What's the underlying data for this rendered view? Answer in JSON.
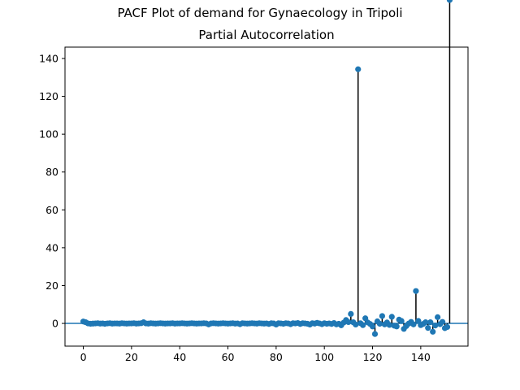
{
  "figure_title": "PACF Plot of demand for Gynaecology in Tripoli",
  "chart_data": {
    "type": "scatter",
    "style": "stem",
    "title": "Partial Autocorrelation",
    "xlabel": "",
    "ylabel": "",
    "xlim": [
      -7.6,
      159.6
    ],
    "ylim": [
      -12,
      146
    ],
    "xticks": [
      0,
      20,
      40,
      60,
      80,
      100,
      120,
      140
    ],
    "yticks": [
      0,
      20,
      40,
      60,
      80,
      100,
      120,
      140
    ],
    "grid": false,
    "legend": "none",
    "marker_color": "#1f77b4",
    "stem_color": "#000000",
    "baseline_color": "#1f77b4",
    "lags": [
      0,
      1,
      2,
      3,
      4,
      5,
      6,
      7,
      8,
      9,
      10,
      11,
      12,
      13,
      14,
      15,
      16,
      17,
      18,
      19,
      20,
      21,
      22,
      23,
      24,
      25,
      26,
      27,
      28,
      29,
      30,
      31,
      32,
      33,
      34,
      35,
      36,
      37,
      38,
      39,
      40,
      41,
      42,
      43,
      44,
      45,
      46,
      47,
      48,
      49,
      50,
      51,
      52,
      53,
      54,
      55,
      56,
      57,
      58,
      59,
      60,
      61,
      62,
      63,
      64,
      65,
      66,
      67,
      68,
      69,
      70,
      71,
      72,
      73,
      74,
      75,
      76,
      77,
      78,
      79,
      80,
      81,
      82,
      83,
      84,
      85,
      86,
      87,
      88,
      89,
      90,
      91,
      92,
      93,
      94,
      95,
      96,
      97,
      98,
      99,
      100,
      101,
      102,
      103,
      104,
      105,
      106,
      107,
      108,
      109,
      110,
      111,
      112,
      113,
      114,
      115,
      116,
      117,
      118,
      119,
      120,
      121,
      122,
      123,
      124,
      125,
      126,
      127,
      128,
      129,
      130,
      131,
      132,
      133,
      134,
      135,
      136,
      137,
      138,
      139,
      140,
      141,
      142,
      143,
      144,
      145,
      146,
      147,
      148,
      149,
      150,
      151,
      152
    ],
    "values": [
      1.0,
      0.6,
      0.0,
      -0.2,
      -0.1,
      0.0,
      0.1,
      -0.1,
      0.0,
      -0.2,
      0.0,
      0.1,
      -0.1,
      0.0,
      0.0,
      -0.1,
      0.1,
      0.0,
      -0.1,
      0.0,
      0.0,
      0.1,
      -0.1,
      0.0,
      0.1,
      0.6,
      0.0,
      -0.1,
      0.1,
      0.0,
      -0.1,
      0.0,
      0.1,
      0.0,
      -0.1,
      0.0,
      0.0,
      0.1,
      -0.1,
      0.0,
      0.0,
      0.1,
      0.0,
      -0.1,
      0.0,
      0.1,
      0.0,
      -0.1,
      0.0,
      0.0,
      0.1,
      0.0,
      -0.5,
      0.0,
      0.1,
      0.0,
      -0.1,
      0.0,
      0.1,
      0.0,
      -0.1,
      0.0,
      0.1,
      -0.1,
      0.0,
      -0.4,
      0.1,
      0.0,
      -0.1,
      0.0,
      0.1,
      0.0,
      -0.1,
      0.1,
      0.0,
      -0.1,
      0.0,
      -0.3,
      0.1,
      0.0,
      -0.6,
      0.1,
      0.0,
      -0.2,
      0.1,
      0.0,
      -0.4,
      0.1,
      0.0,
      0.2,
      -0.3,
      0.1,
      0.0,
      -0.2,
      -0.6,
      0.1,
      -0.1,
      0.3,
      0.0,
      -0.4,
      0.1,
      -0.2,
      0.0,
      -0.3,
      0.2,
      -0.5,
      -0.2,
      -1.0,
      0.4,
      1.8,
      0.7,
      5.0,
      0.6,
      -0.6,
      134.3,
      0.1,
      -0.9,
      2.7,
      0.5,
      -0.3,
      -1.6,
      -5.6,
      1.1,
      -0.2,
      3.9,
      -0.5,
      0.5,
      -0.8,
      3.5,
      -1.2,
      -1.6,
      2.0,
      1.3,
      -2.9,
      -1.4,
      -0.1,
      0.8,
      -0.5,
      17.1,
      1.3,
      -0.9,
      -0.3,
      0.6,
      -2.4,
      0.6,
      -4.4,
      -1.1,
      3.3,
      -0.4,
      0.8,
      -2.5,
      -1.9
    ]
  }
}
